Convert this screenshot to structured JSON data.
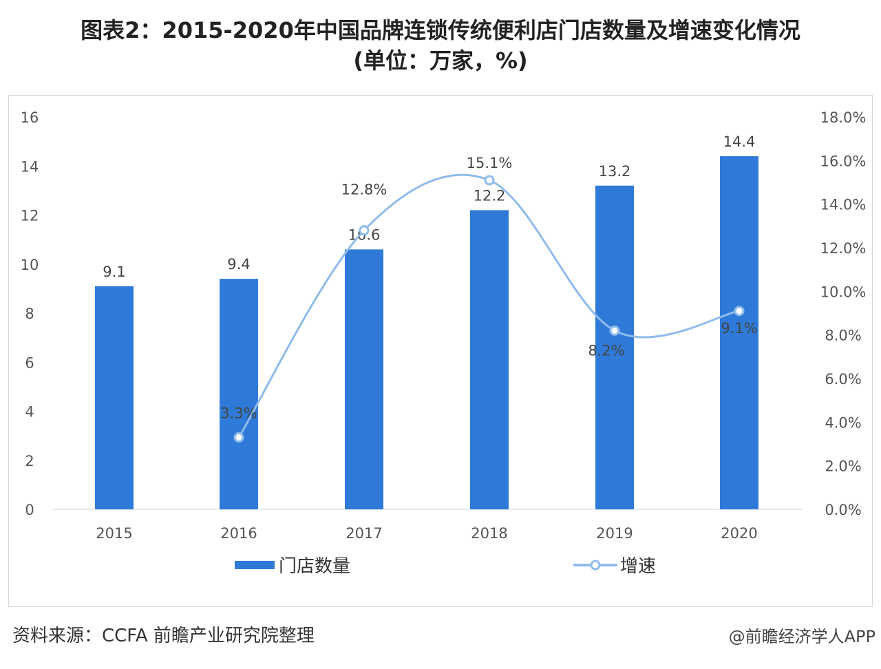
{
  "title_line1": "图表2：2015-2020年中国品牌连锁传统便利店门店数量及增速变化情况",
  "title_line2": "(单位：万家，%)",
  "footer": {
    "source": "资料来源：CCFA 前瞻产业研究院整理",
    "credit": "@前瞻经济学人APP"
  },
  "colors": {
    "bar": "#2f7ad8",
    "line": "#8fbcea"
  },
  "chart_data": {
    "type": "bar+line",
    "categories": [
      "2015",
      "2016",
      "2017",
      "2018",
      "2019",
      "2020"
    ],
    "series": [
      {
        "name": "门店数量",
        "type": "bar",
        "axis": "left",
        "values": [
          9.1,
          9.4,
          10.6,
          12.2,
          13.2,
          14.4
        ],
        "labels": [
          "9.1",
          "9.4",
          "10.6",
          "12.2",
          "13.2",
          "14.4"
        ]
      },
      {
        "name": "增速",
        "type": "line",
        "axis": "right",
        "values": [
          null,
          3.3,
          12.8,
          15.1,
          8.2,
          9.1
        ],
        "labels": [
          "",
          "3.3%",
          "12.8%",
          "15.1%",
          "8.2%",
          "9.1%"
        ]
      }
    ],
    "left_axis": {
      "ylim": [
        0,
        16
      ],
      "ticks": [
        "0",
        "2",
        "4",
        "6",
        "8",
        "10",
        "12",
        "14",
        "16"
      ]
    },
    "right_axis": {
      "ylim": [
        0,
        18
      ],
      "ticks": [
        "0.0%",
        "2.0%",
        "4.0%",
        "6.0%",
        "8.0%",
        "10.0%",
        "12.0%",
        "14.0%",
        "16.0%",
        "18.0%"
      ]
    },
    "legend_placement": "bottom",
    "grid": false
  }
}
